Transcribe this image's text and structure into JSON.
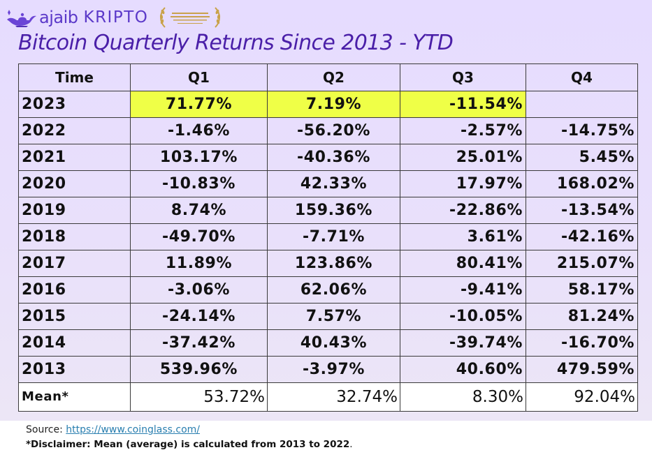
{
  "header": {
    "brand_prefix": "ajaib",
    "brand_suffix": "KRIPTO",
    "brand_color": "#5b39c9"
  },
  "title": "Bitcoin Quarterly Returns Since 2013 - YTD",
  "footer": {
    "source_label": "Source: ",
    "source_link": "https://www.coinglass.com/",
    "disclaimer_bold": "*Disclaimer: Mean (average) is calculated from 2013 to 2022",
    "disclaimer_end": "."
  },
  "chart_data": {
    "type": "table",
    "columns": [
      "Time",
      "Q1",
      "Q2",
      "Q3",
      "Q4"
    ],
    "rows": [
      {
        "year": "2023",
        "values": [
          "71.77%",
          "7.19%",
          "-11.54%",
          ""
        ],
        "highlight": [
          true,
          true,
          true,
          false
        ]
      },
      {
        "year": "2022",
        "values": [
          "-1.46%",
          "-56.20%",
          "-2.57%",
          "-14.75%"
        ]
      },
      {
        "year": "2021",
        "values": [
          "103.17%",
          "-40.36%",
          "25.01%",
          "5.45%"
        ]
      },
      {
        "year": "2020",
        "values": [
          "-10.83%",
          "42.33%",
          "17.97%",
          "168.02%"
        ]
      },
      {
        "year": "2019",
        "values": [
          "8.74%",
          "159.36%",
          "-22.86%",
          "-13.54%"
        ]
      },
      {
        "year": "2018",
        "values": [
          "-49.70%",
          "-7.71%",
          "3.61%",
          "-42.16%"
        ]
      },
      {
        "year": "2017",
        "values": [
          "11.89%",
          "123.86%",
          "80.41%",
          "215.07%"
        ]
      },
      {
        "year": "2016",
        "values": [
          "-3.06%",
          "62.06%",
          "-9.41%",
          "58.17%"
        ]
      },
      {
        "year": "2015",
        "values": [
          "-24.14%",
          "7.57%",
          "-10.05%",
          "81.24%"
        ]
      },
      {
        "year": "2014",
        "values": [
          "-37.42%",
          "40.43%",
          "-39.74%",
          "-16.70%"
        ]
      },
      {
        "year": "2013",
        "values": [
          "539.96%",
          "-3.97%",
          "40.60%",
          "479.59%"
        ]
      }
    ],
    "mean": {
      "label": "Mean*",
      "values": [
        "53.72%",
        "32.74%",
        "8.30%",
        "92.04%"
      ]
    },
    "highlight_color": "#efff47"
  }
}
